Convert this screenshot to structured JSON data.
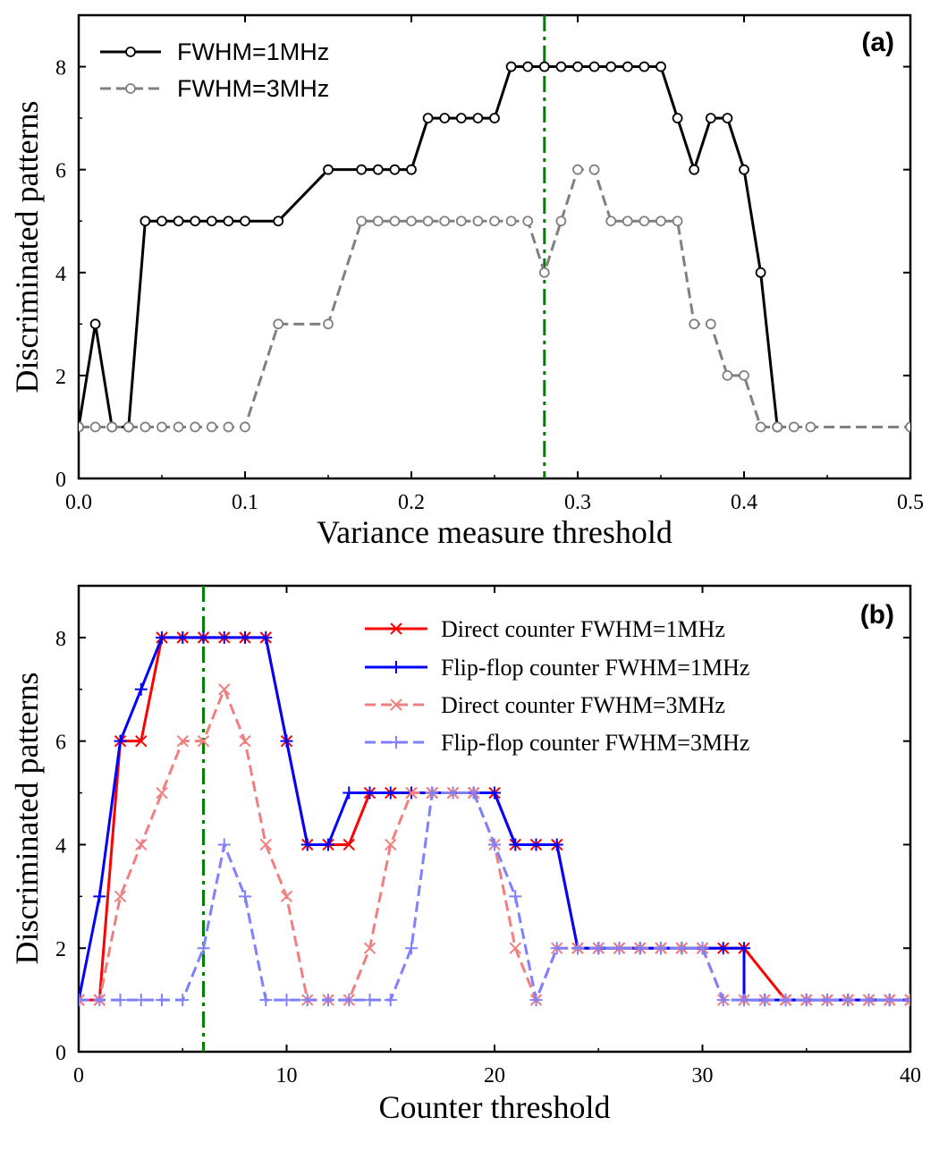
{
  "chart_data": [
    {
      "type": "line",
      "panel_label": "(a)",
      "xlabel": "Variance measure threshold",
      "ylabel": "Discriminated patterns",
      "xlim": [
        0,
        0.5
      ],
      "ylim": [
        0,
        9
      ],
      "xticks": [
        0,
        0.1,
        0.2,
        0.3,
        0.4,
        0.5
      ],
      "xtick_labels": [
        "0.0",
        "0.1",
        "0.2",
        "0.3",
        "0.4",
        "0.5"
      ],
      "yticks": [
        0,
        2,
        4,
        6,
        8
      ],
      "ytick_labels": [
        "0",
        "2",
        "4",
        "6",
        "8"
      ],
      "vline": {
        "x": 0.28,
        "color": "#008000",
        "style": "dash-dot"
      },
      "legend_position": "top-left",
      "series": [
        {
          "name": "FWHM=1MHz",
          "color": "#000000",
          "dash": "solid",
          "marker": "circle",
          "x": [
            0,
            0.01,
            0.02,
            0.03,
            0.04,
            0.05,
            0.06,
            0.07,
            0.08,
            0.09,
            0.1,
            0.12,
            0.15,
            0.17,
            0.18,
            0.19,
            0.2,
            0.21,
            0.22,
            0.23,
            0.24,
            0.25,
            0.26,
            0.27,
            0.28,
            0.29,
            0.3,
            0.31,
            0.32,
            0.33,
            0.34,
            0.35,
            0.36,
            0.37,
            0.38,
            0.39,
            0.4,
            0.41,
            0.42
          ],
          "y": [
            1,
            3,
            1,
            1,
            5,
            5,
            5,
            5,
            5,
            5,
            5,
            5,
            6,
            6,
            6,
            6,
            6,
            7,
            7,
            7,
            7,
            7,
            8,
            8,
            8,
            8,
            8,
            8,
            8,
            8,
            8,
            8,
            7,
            6,
            7,
            7,
            6,
            4,
            1
          ]
        },
        {
          "name": "FWHM=3MHz",
          "color": "#808080",
          "dash": "dashed",
          "marker": "circle",
          "x": [
            0,
            0.01,
            0.02,
            0.03,
            0.04,
            0.05,
            0.06,
            0.07,
            0.08,
            0.09,
            0.1,
            0.12,
            0.15,
            0.17,
            0.18,
            0.19,
            0.2,
            0.21,
            0.22,
            0.23,
            0.24,
            0.25,
            0.26,
            0.27,
            0.28,
            0.29,
            0.3,
            0.31,
            0.32,
            0.33,
            0.34,
            0.35,
            0.36,
            0.37,
            0.38,
            0.39,
            0.4,
            0.41,
            0.42,
            0.43,
            0.44,
            0.5
          ],
          "y": [
            1,
            1,
            1,
            1,
            1,
            1,
            1,
            1,
            1,
            1,
            1,
            3,
            3,
            5,
            5,
            5,
            5,
            5,
            5,
            5,
            5,
            5,
            5,
            5,
            4,
            5,
            6,
            6,
            5,
            5,
            5,
            5,
            5,
            3,
            3,
            2,
            2,
            1,
            1,
            1,
            1,
            1
          ]
        }
      ]
    },
    {
      "type": "line",
      "panel_label": "(b)",
      "xlabel": "Counter threshold",
      "ylabel": "Discriminated patterns",
      "xlim": [
        0,
        40
      ],
      "ylim": [
        0,
        9
      ],
      "xticks": [
        0,
        10,
        20,
        30,
        40
      ],
      "xtick_labels": [
        "0",
        "10",
        "20",
        "30",
        "40"
      ],
      "yticks": [
        0,
        2,
        4,
        6,
        8
      ],
      "ytick_labels": [
        "0",
        "2",
        "4",
        "6",
        "8"
      ],
      "vline": {
        "x": 6,
        "color": "#008000",
        "style": "dash-dot"
      },
      "legend_position": "top-right",
      "series": [
        {
          "name": "Direct counter FWHM=1MHz",
          "color": "#ff0000",
          "dash": "solid",
          "marker": "x",
          "x": [
            0,
            1,
            2,
            3,
            4,
            5,
            6,
            7,
            8,
            9,
            10,
            11,
            12,
            13,
            14,
            15,
            16,
            17,
            18,
            19,
            20,
            21,
            22,
            23,
            24,
            25,
            26,
            27,
            28,
            29,
            30,
            31,
            32,
            33,
            34,
            35,
            36,
            37,
            38,
            39,
            40
          ],
          "y": [
            1,
            1,
            6,
            6,
            8,
            8,
            8,
            8,
            8,
            8,
            6,
            4,
            4,
            4,
            5,
            5,
            5,
            5,
            5,
            5,
            5,
            4,
            4,
            4,
            2,
            2,
            2,
            2,
            2,
            2,
            2,
            2,
            2,
            1.5,
            1,
            1,
            1,
            1,
            1,
            1,
            1
          ]
        },
        {
          "name": "Flip-flop counter FWHM=1MHz",
          "color": "#0000ff",
          "dash": "solid",
          "marker": "plus",
          "x": [
            0,
            1,
            2,
            3,
            4,
            5,
            6,
            7,
            8,
            9,
            10,
            11,
            12,
            13,
            14,
            15,
            16,
            17,
            18,
            19,
            20,
            21,
            22,
            23,
            24,
            25,
            26,
            27,
            28,
            29,
            30,
            31,
            32,
            32,
            33,
            34,
            35,
            36,
            37,
            38,
            39,
            40
          ],
          "y": [
            1,
            3,
            6,
            7,
            8,
            8,
            8,
            8,
            8,
            8,
            6,
            4,
            4,
            5,
            5,
            5,
            5,
            5,
            5,
            5,
            5,
            4,
            4,
            4,
            2,
            2,
            2,
            2,
            2,
            2,
            2,
            2,
            2,
            1,
            1,
            1,
            1,
            1,
            1,
            1,
            1,
            1
          ]
        },
        {
          "name": "Direct counter FWHM=3MHz",
          "color": "#f08080",
          "dash": "dashed",
          "marker": "x",
          "x": [
            0,
            1,
            2,
            3,
            4,
            5,
            6,
            7,
            8,
            9,
            10,
            11,
            12,
            13,
            14,
            15,
            16,
            17,
            18,
            19,
            20,
            21,
            22,
            23,
            24,
            25,
            26,
            27,
            28,
            29,
            30,
            31,
            32,
            33,
            34,
            35,
            36,
            37,
            38,
            39,
            40
          ],
          "y": [
            1,
            1,
            3,
            4,
            5,
            6,
            6,
            7,
            6,
            4,
            3,
            1,
            1,
            1,
            2,
            4,
            5,
            5,
            5,
            5,
            4,
            2,
            1,
            2,
            2,
            2,
            2,
            2,
            2,
            2,
            2,
            1,
            1,
            1,
            1,
            1,
            1,
            1,
            1,
            1,
            1
          ]
        },
        {
          "name": "Flip-flop counter FWHM=3MHz",
          "color": "#8080ff",
          "dash": "dashed",
          "marker": "plus",
          "x": [
            0,
            1,
            2,
            3,
            4,
            5,
            6,
            7,
            8,
            9,
            10,
            11,
            12,
            13,
            14,
            15,
            16,
            17,
            18,
            19,
            20,
            21,
            22,
            23,
            24,
            25,
            26,
            27,
            28,
            29,
            30,
            31,
            32,
            33,
            34,
            35,
            36,
            37,
            38,
            39,
            40
          ],
          "y": [
            1,
            1,
            1,
            1,
            1,
            1,
            2,
            4,
            3,
            1,
            1,
            1,
            1,
            1,
            1,
            1,
            2,
            5,
            5,
            5,
            4,
            3,
            1,
            2,
            2,
            2,
            2,
            2,
            2,
            2,
            2,
            1,
            1,
            1,
            1,
            1,
            1,
            1,
            1,
            1,
            1
          ]
        }
      ]
    }
  ]
}
